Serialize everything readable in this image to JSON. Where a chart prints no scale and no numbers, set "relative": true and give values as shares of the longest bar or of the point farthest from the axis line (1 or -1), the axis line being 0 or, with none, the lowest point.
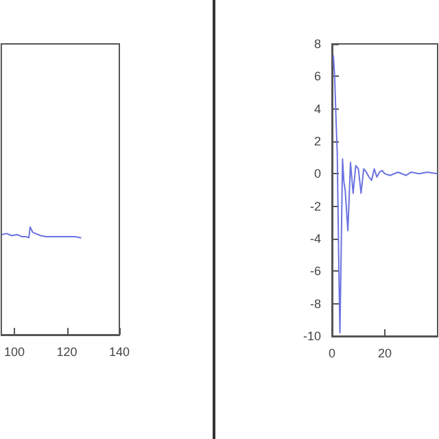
{
  "chart_data": [
    {
      "type": "line",
      "relative": true,
      "tick_labels": "x",
      "xlim": [
        95,
        140
      ],
      "xticks": [
        100,
        120,
        140
      ],
      "grid": false,
      "marker": "none",
      "line_style": "solid",
      "series": [
        {
          "color": "#6b72e0",
          "x": [
            95.2,
            97,
            99,
            101,
            103,
            104.5,
            105.5,
            106,
            107,
            108,
            110,
            112,
            115,
            118,
            121,
            123,
            125.5
          ],
          "values": [
            0.93,
            0.94,
            0.92,
            0.93,
            0.91,
            0.91,
            0.9,
            1,
            0.95,
            0.94,
            0.92,
            0.91,
            0.91,
            0.91,
            0.91,
            0.91,
            0.9
          ]
        }
      ]
    },
    {
      "type": "line",
      "xlim": [
        0,
        40
      ],
      "xticks": [
        0,
        20
      ],
      "ylim": [
        -10,
        8
      ],
      "yticks": [
        -10,
        -8,
        -6,
        -4,
        -2,
        0,
        2,
        4,
        6,
        8
      ],
      "grid": false,
      "marker": "none",
      "line_style": "solid",
      "series": [
        {
          "color": "#6b72e0",
          "x": [
            0.5,
            1,
            1.5,
            2,
            2.5,
            3,
            3.5,
            4,
            4.5,
            5,
            6,
            6.5,
            7,
            8,
            9,
            10,
            11,
            12,
            13,
            14,
            15,
            16,
            17,
            18,
            19,
            20,
            22,
            25,
            28,
            30,
            33,
            36,
            40
          ],
          "values": [
            7.3,
            6,
            3.5,
            1.2,
            -4.8,
            -9.8,
            -4.5,
            0.9,
            -0.5,
            -1,
            -3.5,
            -1.5,
            0.7,
            -1.2,
            0.5,
            0.3,
            -1.2,
            0.3,
            0.1,
            -0.2,
            -0.4,
            0.3,
            -0.2,
            0.1,
            0.2,
            0,
            -0.1,
            0.1,
            -0.1,
            0.1,
            0,
            0.1,
            0
          ]
        }
      ]
    }
  ]
}
